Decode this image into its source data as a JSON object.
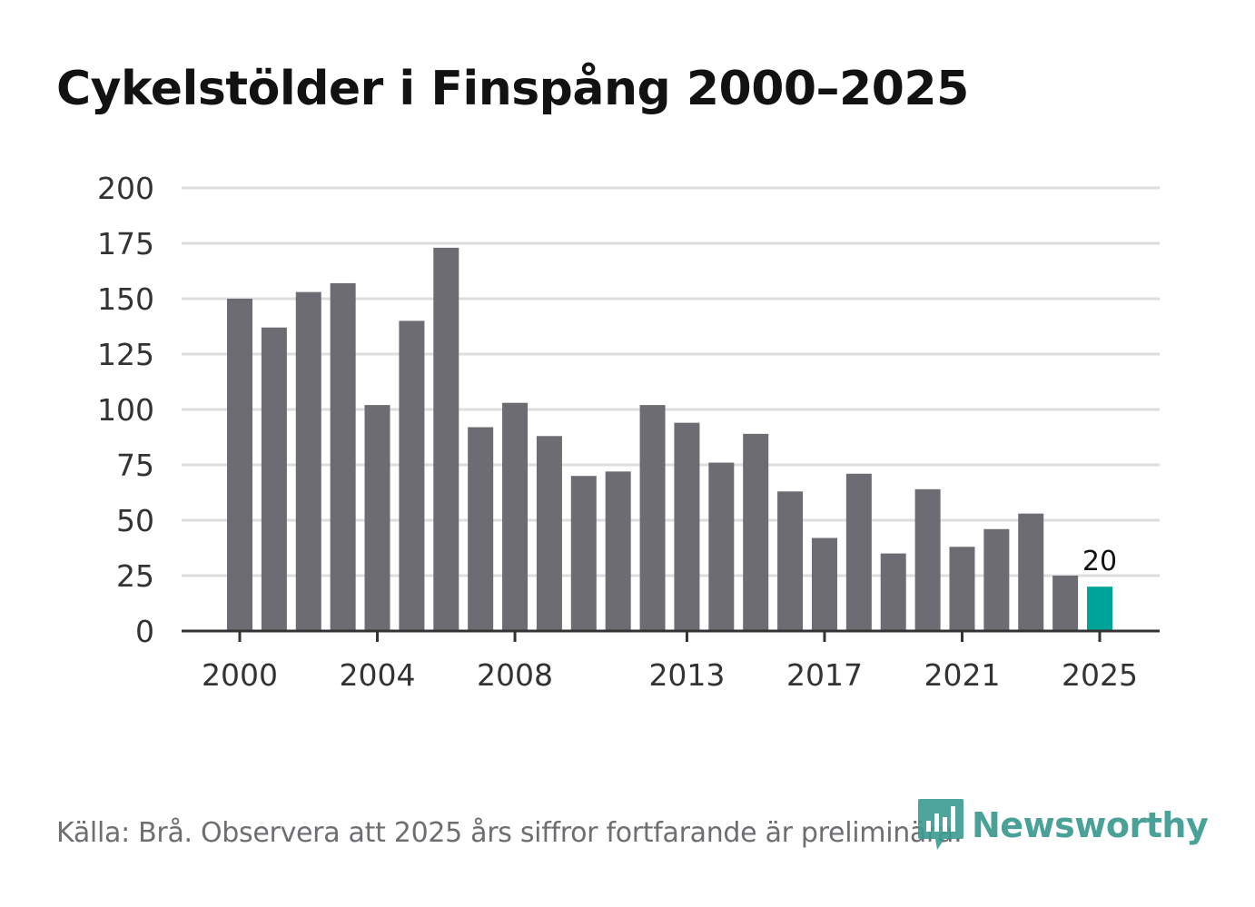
{
  "title": "Cykelstölder i Finspång 2000–2025",
  "source": "Källa: Brå. Observera att 2025 års siffror fortfarande är preliminära.",
  "logo": {
    "text": "Newsworthy",
    "icon": "newsworthy-logo-icon",
    "color": "#3a9a90"
  },
  "colors": {
    "bar": "#6d6c72",
    "highlight": "#00a398",
    "grid": "#dddddd",
    "axis": "#333333",
    "text": "#333333"
  },
  "chart_data": {
    "type": "bar",
    "title": "Cykelstölder i Finspång 2000–2025",
    "xlabel": "",
    "ylabel": "",
    "ylim": [
      0,
      200
    ],
    "yticks": [
      0,
      25,
      50,
      75,
      100,
      125,
      150,
      175,
      200
    ],
    "xtick_labels": [
      "2000",
      "2004",
      "2008",
      "2013",
      "2017",
      "2021",
      "2025"
    ],
    "categories": [
      "2000",
      "2001",
      "2002",
      "2003",
      "2004",
      "2005",
      "2006",
      "2007",
      "2008",
      "2009",
      "2010",
      "2011",
      "2012",
      "2013",
      "2014",
      "2015",
      "2016",
      "2017",
      "2018",
      "2019",
      "2020",
      "2021",
      "2022",
      "2023",
      "2024",
      "2025"
    ],
    "values": [
      150,
      137,
      153,
      157,
      102,
      140,
      173,
      92,
      103,
      88,
      70,
      72,
      102,
      94,
      76,
      89,
      63,
      42,
      71,
      35,
      64,
      38,
      46,
      53,
      25,
      20
    ],
    "highlight": {
      "category": "2025",
      "label": "20"
    },
    "grid": true
  }
}
